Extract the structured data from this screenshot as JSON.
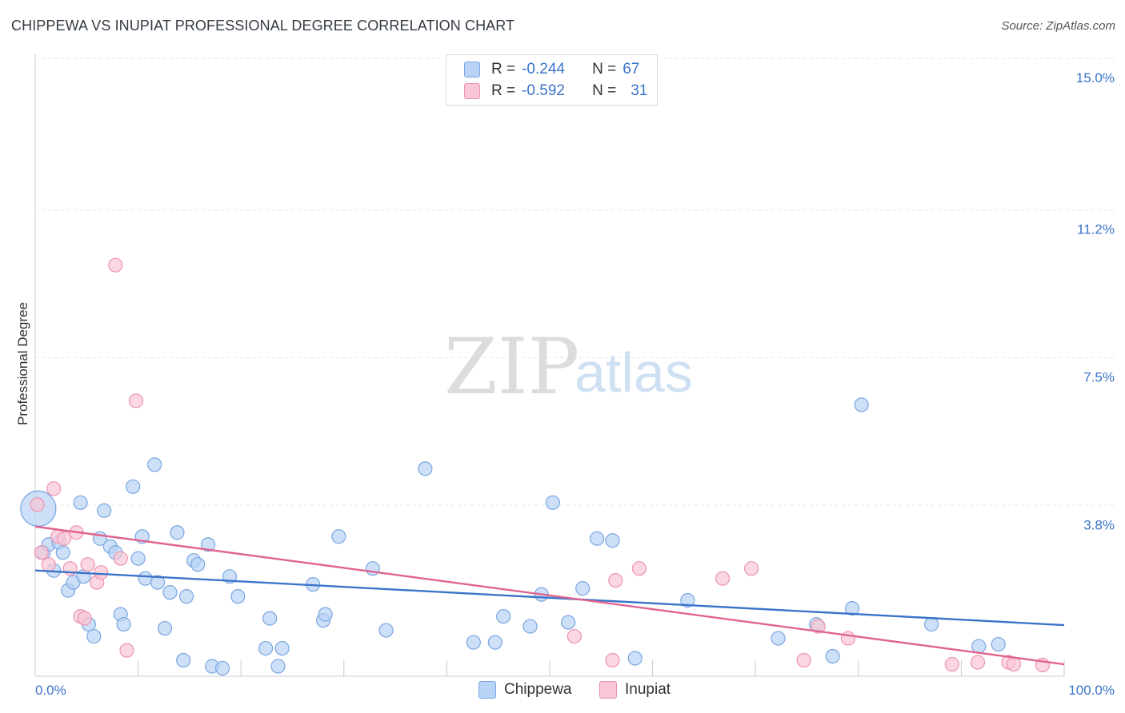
{
  "title": "CHIPPEWA VS INUPIAT PROFESSIONAL DEGREE CORRELATION CHART",
  "source": "Source: ZipAtlas.com",
  "watermark": {
    "zip": "ZIP",
    "atlas": "atlas"
  },
  "legend": {
    "r_label": "R =",
    "n_label": "N =",
    "series": [
      {
        "name": "Chippewa",
        "r": "-0.244",
        "n": "67",
        "fill": "#b8d3f5",
        "stroke": "#7aa6e0"
      },
      {
        "name": "Inupiat",
        "r": "-0.592",
        "n": "31",
        "fill": "#f9c6d6",
        "stroke": "#eb93b0"
      }
    ]
  },
  "chart_data": {
    "type": "scatter",
    "title": "CHIPPEWA VS INUPIAT PROFESSIONAL DEGREE CORRELATION CHART",
    "xlabel": "",
    "ylabel": "Professional Degree",
    "xlim": [
      0,
      100
    ],
    "ylim": [
      0,
      15.6
    ],
    "y_ticks": [
      3.8,
      7.5,
      11.2,
      15.0
    ],
    "y_tick_labels": [
      "3.8%",
      "7.5%",
      "11.2%",
      "15.0%"
    ],
    "x_tick_labels": [
      "0.0%",
      "100.0%"
    ],
    "grid": true,
    "legend_position": "top-center",
    "series": [
      {
        "name": "Chippewa",
        "color": "#3b74c9",
        "marker_fill": "#b8d3f5",
        "marker_stroke": "#7aa6e0",
        "trend": {
          "x": [
            0,
            100
          ],
          "y": [
            2.65,
            1.28
          ]
        },
        "points": [
          {
            "x": 0.3,
            "y": 4.2,
            "big": true
          },
          {
            "x": 0.8,
            "y": 3.1
          },
          {
            "x": 1.3,
            "y": 3.3
          },
          {
            "x": 1.8,
            "y": 2.65
          },
          {
            "x": 2.3,
            "y": 3.35
          },
          {
            "x": 2.7,
            "y": 3.1
          },
          {
            "x": 3.2,
            "y": 2.15
          },
          {
            "x": 3.7,
            "y": 2.35
          },
          {
            "x": 4.4,
            "y": 4.35
          },
          {
            "x": 4.7,
            "y": 2.5
          },
          {
            "x": 5.2,
            "y": 1.3
          },
          {
            "x": 5.7,
            "y": 1.0
          },
          {
            "x": 6.3,
            "y": 3.45
          },
          {
            "x": 6.7,
            "y": 4.15
          },
          {
            "x": 7.3,
            "y": 3.25
          },
          {
            "x": 7.8,
            "y": 3.1
          },
          {
            "x": 8.3,
            "y": 1.55
          },
          {
            "x": 8.6,
            "y": 1.3
          },
          {
            "x": 9.5,
            "y": 4.75
          },
          {
            "x": 10.0,
            "y": 2.95
          },
          {
            "x": 10.4,
            "y": 3.5
          },
          {
            "x": 10.7,
            "y": 2.45
          },
          {
            "x": 11.6,
            "y": 5.3
          },
          {
            "x": 11.9,
            "y": 2.35
          },
          {
            "x": 12.6,
            "y": 1.2
          },
          {
            "x": 13.1,
            "y": 2.1
          },
          {
            "x": 13.8,
            "y": 3.6
          },
          {
            "x": 14.4,
            "y": 0.4
          },
          {
            "x": 14.7,
            "y": 2.0
          },
          {
            "x": 15.4,
            "y": 2.9
          },
          {
            "x": 15.8,
            "y": 2.8
          },
          {
            "x": 16.8,
            "y": 3.3
          },
          {
            "x": 17.2,
            "y": 0.25
          },
          {
            "x": 18.2,
            "y": 0.2
          },
          {
            "x": 18.9,
            "y": 2.5
          },
          {
            "x": 19.7,
            "y": 2.0
          },
          {
            "x": 22.4,
            "y": 0.7
          },
          {
            "x": 22.8,
            "y": 1.45
          },
          {
            "x": 23.6,
            "y": 0.25
          },
          {
            "x": 24.0,
            "y": 0.7
          },
          {
            "x": 27.0,
            "y": 2.3
          },
          {
            "x": 28.0,
            "y": 1.4
          },
          {
            "x": 28.2,
            "y": 1.55
          },
          {
            "x": 29.5,
            "y": 3.5
          },
          {
            "x": 32.8,
            "y": 2.7
          },
          {
            "x": 34.1,
            "y": 1.15
          },
          {
            "x": 37.9,
            "y": 5.2
          },
          {
            "x": 42.6,
            "y": 0.85
          },
          {
            "x": 44.7,
            "y": 0.85
          },
          {
            "x": 45.5,
            "y": 1.5
          },
          {
            "x": 48.1,
            "y": 1.25
          },
          {
            "x": 49.2,
            "y": 2.05
          },
          {
            "x": 50.3,
            "y": 4.35
          },
          {
            "x": 51.8,
            "y": 1.35
          },
          {
            "x": 53.2,
            "y": 2.2
          },
          {
            "x": 54.6,
            "y": 3.45
          },
          {
            "x": 56.1,
            "y": 3.4
          },
          {
            "x": 58.3,
            "y": 0.45
          },
          {
            "x": 63.4,
            "y": 1.9
          },
          {
            "x": 72.2,
            "y": 0.95
          },
          {
            "x": 75.9,
            "y": 1.3
          },
          {
            "x": 77.5,
            "y": 0.5
          },
          {
            "x": 79.4,
            "y": 1.7
          },
          {
            "x": 80.3,
            "y": 6.8
          },
          {
            "x": 87.1,
            "y": 1.3
          },
          {
            "x": 91.7,
            "y": 0.75
          },
          {
            "x": 93.6,
            "y": 0.8
          }
        ]
      },
      {
        "name": "Inupiat",
        "color": "#e0648f",
        "marker_fill": "#f9c6d6",
        "marker_stroke": "#eb93b0",
        "trend": {
          "x": [
            0,
            100
          ],
          "y": [
            3.75,
            0.3
          ]
        },
        "points": [
          {
            "x": 0.2,
            "y": 4.3
          },
          {
            "x": 0.6,
            "y": 3.1
          },
          {
            "x": 1.3,
            "y": 2.8
          },
          {
            "x": 1.8,
            "y": 4.7
          },
          {
            "x": 2.2,
            "y": 3.5
          },
          {
            "x": 2.8,
            "y": 3.45
          },
          {
            "x": 3.4,
            "y": 2.7
          },
          {
            "x": 4.0,
            "y": 3.6
          },
          {
            "x": 4.4,
            "y": 1.5
          },
          {
            "x": 4.8,
            "y": 1.45
          },
          {
            "x": 5.1,
            "y": 2.8
          },
          {
            "x": 6.0,
            "y": 2.35
          },
          {
            "x": 6.4,
            "y": 2.6
          },
          {
            "x": 7.8,
            "y": 10.3
          },
          {
            "x": 8.3,
            "y": 2.95
          },
          {
            "x": 8.9,
            "y": 0.65
          },
          {
            "x": 9.8,
            "y": 6.9
          },
          {
            "x": 52.4,
            "y": 1.0
          },
          {
            "x": 56.1,
            "y": 0.4
          },
          {
            "x": 56.4,
            "y": 2.4
          },
          {
            "x": 58.7,
            "y": 2.7
          },
          {
            "x": 66.8,
            "y": 2.45
          },
          {
            "x": 69.6,
            "y": 2.7
          },
          {
            "x": 74.7,
            "y": 0.4
          },
          {
            "x": 76.1,
            "y": 1.25
          },
          {
            "x": 79.0,
            "y": 0.95
          },
          {
            "x": 89.1,
            "y": 0.3
          },
          {
            "x": 91.6,
            "y": 0.35
          },
          {
            "x": 94.6,
            "y": 0.35
          },
          {
            "x": 95.1,
            "y": 0.3
          },
          {
            "x": 97.9,
            "y": 0.28
          }
        ]
      }
    ]
  }
}
